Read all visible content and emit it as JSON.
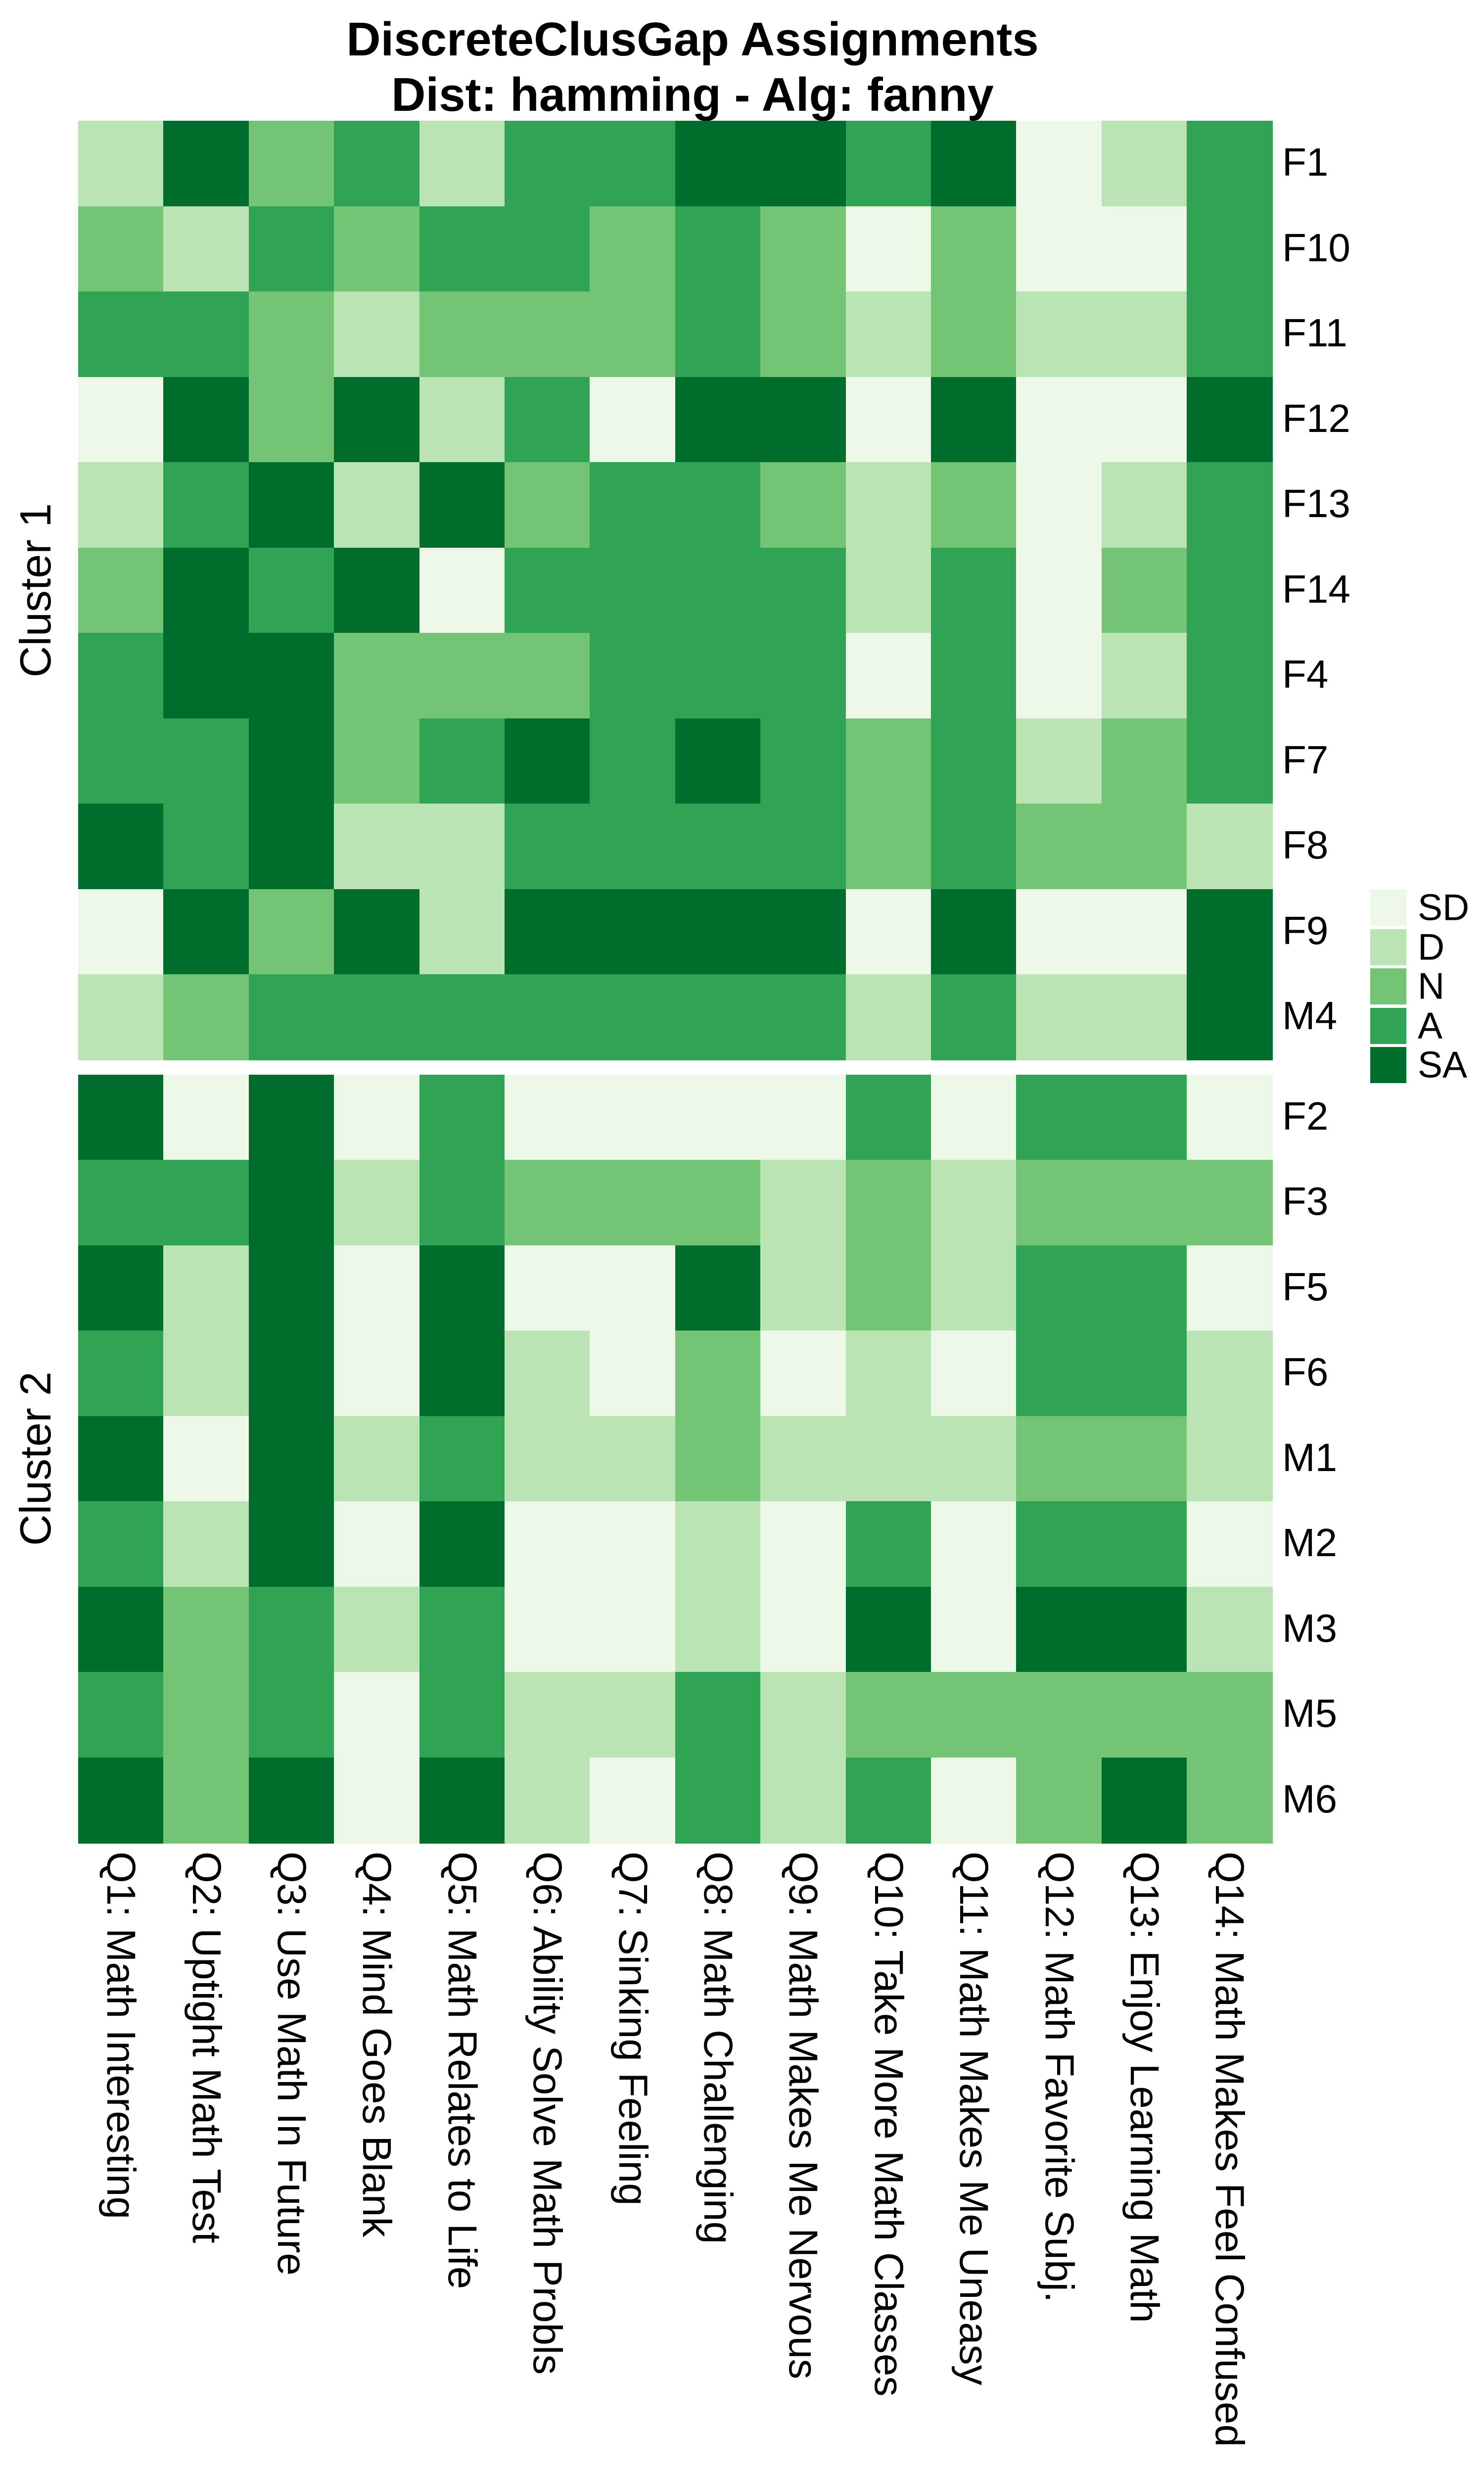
{
  "chart_data": {
    "type": "heatmap",
    "title": "DiscreteClusGap Assignments",
    "subtitle": "Dist: hamming - Alg: fanny",
    "value_scale": [
      "SD",
      "D",
      "N",
      "A",
      "SA"
    ],
    "palette": {
      "SD": "#EDF8E9",
      "D": "#BAE4B3",
      "N": "#74C476",
      "A": "#31A354",
      "SA": "#006D2C"
    },
    "legend": {
      "position": "right",
      "entries": [
        "SD",
        "D",
        "N",
        "A",
        "SA"
      ]
    },
    "columns": [
      "Q1: Math Interesting",
      "Q2: Uptight Math Test",
      "Q3: Use Math In Future",
      "Q4: Mind Goes Blank",
      "Q5: Math Relates to Life",
      "Q6: Ability Solve Math Probls",
      "Q7: Sinking Feeling",
      "Q8: Math Challenging",
      "Q9: Math Makes Me Nervous",
      "Q10: Take More Math Classes",
      "Q11: Math Makes Me Uneasy",
      "Q12: Math Favorite Subj.",
      "Q13: Enjoy Learning Math",
      "Q14: Math Makes Feel Confused"
    ],
    "clusters": [
      {
        "name": "Cluster 1",
        "rows": [
          {
            "name": "F1",
            "values": [
              "D",
              "SA",
              "N",
              "A",
              "D",
              "A",
              "A",
              "SA",
              "SA",
              "A",
              "SA",
              "SD",
              "D",
              "A"
            ]
          },
          {
            "name": "F10",
            "values": [
              "N",
              "D",
              "A",
              "N",
              "A",
              "A",
              "N",
              "A",
              "N",
              "SD",
              "N",
              "SD",
              "SD",
              "A"
            ]
          },
          {
            "name": "F11",
            "values": [
              "A",
              "A",
              "N",
              "D",
              "N",
              "N",
              "N",
              "A",
              "N",
              "D",
              "N",
              "D",
              "D",
              "A"
            ]
          },
          {
            "name": "F12",
            "values": [
              "SD",
              "SA",
              "N",
              "SA",
              "D",
              "A",
              "SD",
              "SA",
              "SA",
              "SD",
              "SA",
              "SD",
              "SD",
              "SA"
            ]
          },
          {
            "name": "F13",
            "values": [
              "D",
              "A",
              "SA",
              "D",
              "SA",
              "N",
              "A",
              "A",
              "N",
              "D",
              "N",
              "SD",
              "D",
              "A"
            ]
          },
          {
            "name": "F14",
            "values": [
              "N",
              "SA",
              "A",
              "SA",
              "SD",
              "A",
              "A",
              "A",
              "A",
              "D",
              "A",
              "SD",
              "N",
              "A"
            ]
          },
          {
            "name": "F4",
            "values": [
              "A",
              "SA",
              "SA",
              "N",
              "N",
              "N",
              "A",
              "A",
              "A",
              "SD",
              "A",
              "SD",
              "D",
              "A"
            ]
          },
          {
            "name": "F7",
            "values": [
              "A",
              "A",
              "SA",
              "N",
              "A",
              "SA",
              "A",
              "SA",
              "A",
              "N",
              "A",
              "D",
              "N",
              "A"
            ]
          },
          {
            "name": "F8",
            "values": [
              "SA",
              "A",
              "SA",
              "D",
              "D",
              "A",
              "A",
              "A",
              "A",
              "N",
              "A",
              "N",
              "N",
              "D"
            ]
          },
          {
            "name": "F9",
            "values": [
              "SD",
              "SA",
              "N",
              "SA",
              "D",
              "SA",
              "SA",
              "SA",
              "SA",
              "SD",
              "SA",
              "SD",
              "SD",
              "SA"
            ]
          },
          {
            "name": "M4",
            "values": [
              "D",
              "N",
              "A",
              "A",
              "A",
              "A",
              "A",
              "A",
              "A",
              "D",
              "A",
              "D",
              "D",
              "SA"
            ]
          }
        ]
      },
      {
        "name": "Cluster 2",
        "rows": [
          {
            "name": "F2",
            "values": [
              "SA",
              "SD",
              "SA",
              "SD",
              "A",
              "SD",
              "SD",
              "SD",
              "SD",
              "A",
              "SD",
              "A",
              "A",
              "SD"
            ]
          },
          {
            "name": "F3",
            "values": [
              "A",
              "A",
              "SA",
              "D",
              "A",
              "N",
              "N",
              "N",
              "D",
              "N",
              "D",
              "N",
              "N",
              "N"
            ]
          },
          {
            "name": "F5",
            "values": [
              "SA",
              "D",
              "SA",
              "SD",
              "SA",
              "SD",
              "SD",
              "SA",
              "D",
              "N",
              "D",
              "A",
              "A",
              "SD"
            ]
          },
          {
            "name": "F6",
            "values": [
              "A",
              "D",
              "SA",
              "SD",
              "SA",
              "D",
              "SD",
              "N",
              "SD",
              "D",
              "SD",
              "A",
              "A",
              "D"
            ]
          },
          {
            "name": "M1",
            "values": [
              "SA",
              "SD",
              "SA",
              "D",
              "A",
              "D",
              "D",
              "N",
              "D",
              "D",
              "D",
              "N",
              "N",
              "D"
            ]
          },
          {
            "name": "M2",
            "values": [
              "A",
              "D",
              "SA",
              "SD",
              "SA",
              "SD",
              "SD",
              "D",
              "SD",
              "A",
              "SD",
              "A",
              "A",
              "SD"
            ]
          },
          {
            "name": "M3",
            "values": [
              "SA",
              "N",
              "A",
              "D",
              "A",
              "SD",
              "SD",
              "D",
              "SD",
              "SA",
              "SD",
              "SA",
              "SA",
              "D"
            ]
          },
          {
            "name": "M5",
            "values": [
              "A",
              "N",
              "A",
              "SD",
              "A",
              "D",
              "D",
              "A",
              "D",
              "N",
              "N",
              "N",
              "N",
              "N"
            ]
          },
          {
            "name": "M6",
            "values": [
              "SA",
              "N",
              "SA",
              "SD",
              "SA",
              "D",
              "SD",
              "A",
              "D",
              "A",
              "SD",
              "N",
              "SA",
              "N"
            ]
          }
        ]
      }
    ]
  }
}
